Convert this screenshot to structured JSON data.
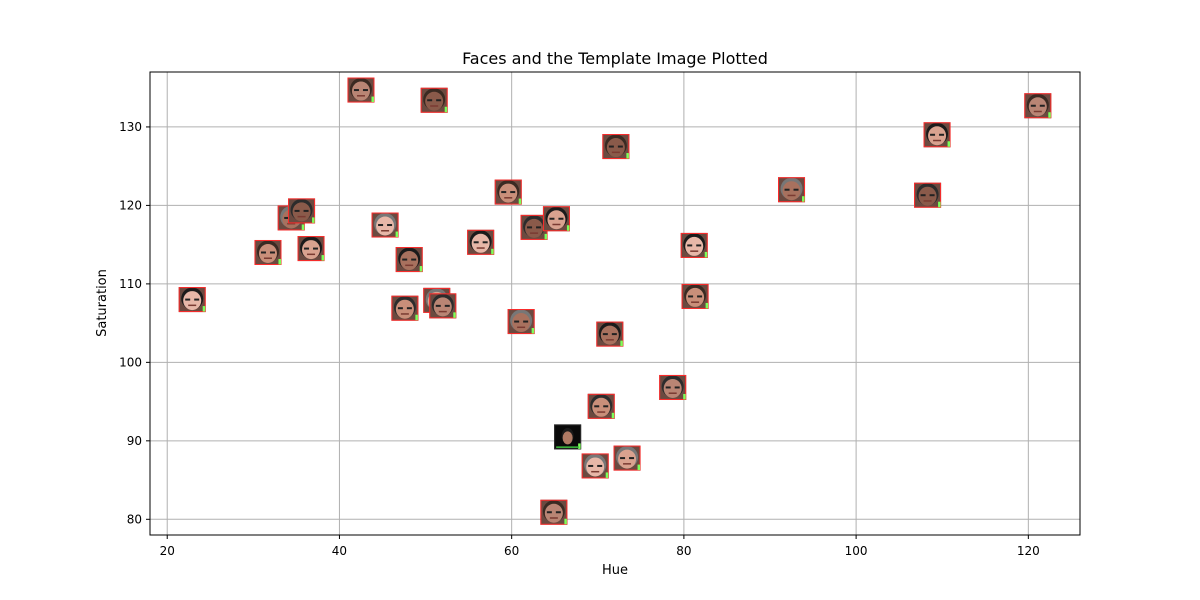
{
  "chart_data": {
    "type": "scatter",
    "title": "Faces and the Template Image Plotted",
    "xlabel": "Hue",
    "ylabel": "Saturation",
    "xlim": [
      18.0,
      126.0
    ],
    "ylim": [
      78.0,
      137.0
    ],
    "x_ticks": [
      20,
      40,
      60,
      80,
      100,
      120
    ],
    "y_ticks": [
      80,
      90,
      100,
      110,
      120,
      130
    ],
    "x_tick_labels": [
      "20",
      "40",
      "60",
      "80",
      "100",
      "120"
    ],
    "y_tick_labels": [
      "80",
      "90",
      "100",
      "110",
      "120",
      "130"
    ],
    "grid": true,
    "marker": "face-thumbnail",
    "points": [
      {
        "x": 22.9,
        "y": 108.0
      },
      {
        "x": 31.7,
        "y": 114.0
      },
      {
        "x": 34.4,
        "y": 118.4
      },
      {
        "x": 35.6,
        "y": 119.3
      },
      {
        "x": 36.7,
        "y": 114.5
      },
      {
        "x": 42.5,
        "y": 134.7
      },
      {
        "x": 45.3,
        "y": 117.5
      },
      {
        "x": 47.6,
        "y": 106.9
      },
      {
        "x": 48.1,
        "y": 113.1
      },
      {
        "x": 51.0,
        "y": 133.4
      },
      {
        "x": 51.3,
        "y": 107.9
      },
      {
        "x": 52.0,
        "y": 107.2
      },
      {
        "x": 56.4,
        "y": 115.3
      },
      {
        "x": 59.6,
        "y": 121.7
      },
      {
        "x": 61.1,
        "y": 105.2
      },
      {
        "x": 62.6,
        "y": 117.2
      },
      {
        "x": 65.2,
        "y": 118.3
      },
      {
        "x": 64.9,
        "y": 80.9
      },
      {
        "x": 69.7,
        "y": 86.8
      },
      {
        "x": 70.4,
        "y": 94.4
      },
      {
        "x": 71.4,
        "y": 103.6
      },
      {
        "x": 72.1,
        "y": 127.5
      },
      {
        "x": 73.4,
        "y": 87.8
      },
      {
        "x": 78.7,
        "y": 96.8
      },
      {
        "x": 81.2,
        "y": 114.9
      },
      {
        "x": 81.3,
        "y": 108.4
      },
      {
        "x": 92.5,
        "y": 122.0
      },
      {
        "x": 108.3,
        "y": 121.3
      },
      {
        "x": 109.4,
        "y": 129.0
      },
      {
        "x": 121.1,
        "y": 132.7
      }
    ],
    "template_point": {
      "x": 66.5,
      "y": 90.5
    }
  },
  "colors": {
    "axis": "#000000",
    "grid": "#b0b0b0",
    "face_border": "#ff2a2a",
    "face_accent": "#7cff5a",
    "template_background": "#0a0a0a"
  }
}
